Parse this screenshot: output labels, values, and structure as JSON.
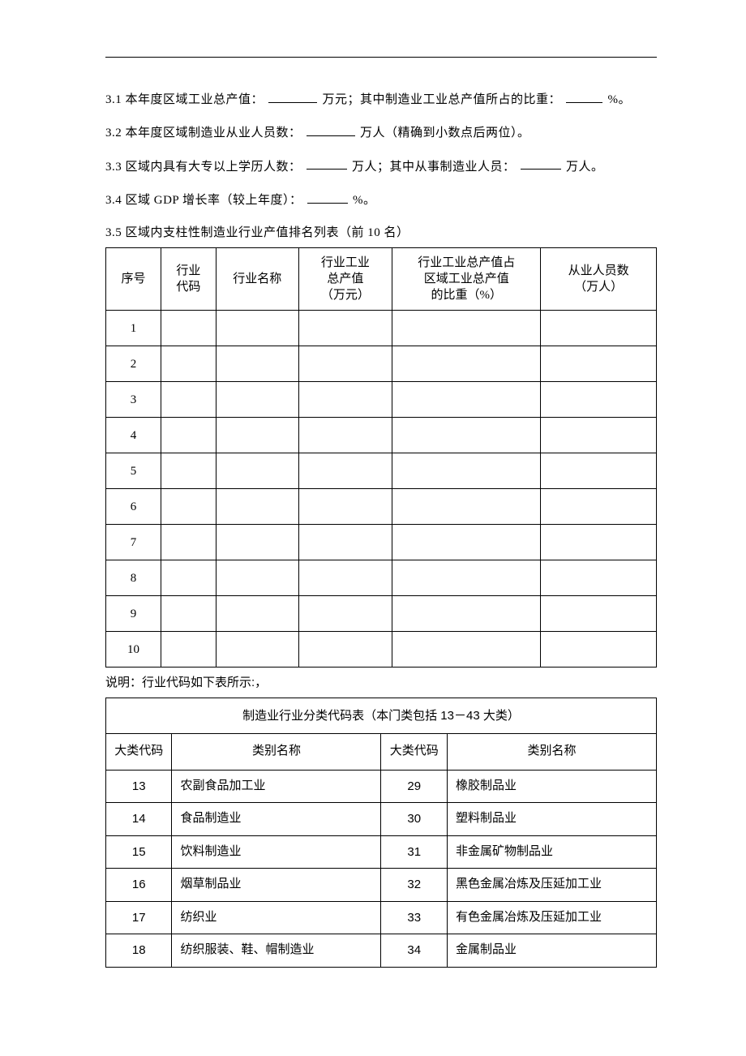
{
  "lines": {
    "l1a": "3.1 本年度区域工业总产值：",
    "l1b": "万元；其中制造业工业总产值所占的比重：",
    "l1c": "%。",
    "l2a": "3.2 本年度区域制造业从业人员数：",
    "l2b": "万人（精确到小数点后两位）。",
    "l3a": "3.3 区域内具有大专以上学历人数：",
    "l3b": " 万人；其中从事制造业人员：",
    "l3c": "万人。",
    "l4a": "3.4 区域 GDP 增长率（较上年度）：",
    "l4b": "%。",
    "l5": "3.5 区域内支柱性制造业行业产值排名列表（前 10 名）"
  },
  "rank_table": {
    "headers": [
      "序号",
      "行业\n代码",
      "行业名称",
      "行业工业\n总产值\n（万元）",
      "行业工业总产值占\n区域工业总产值\n的比重（%）",
      "从业人员数\n（万人）"
    ],
    "col_widths_pct": [
      10,
      10,
      15,
      17,
      27,
      21
    ],
    "rows": [
      "1",
      "2",
      "3",
      "4",
      "5",
      "6",
      "7",
      "8",
      "9",
      "10"
    ]
  },
  "note": "说明：行业代码如下表所示:，",
  "codes_table": {
    "title": "制造业行业分类代码表（本门类包括 13－43 大类）",
    "head": [
      "大类代码",
      "类别名称",
      "大类代码",
      "类别名称"
    ],
    "col_widths_pct": [
      12,
      38,
      12,
      38
    ],
    "rows": [
      {
        "c1": "13",
        "n1": "农副食品加工业",
        "c2": "29",
        "n2": "橡胶制品业"
      },
      {
        "c1": "14",
        "n1": "食品制造业",
        "c2": "30",
        "n2": "塑料制品业"
      },
      {
        "c1": "15",
        "n1": "饮料制造业",
        "c2": "31",
        "n2": "非金属矿物制品业"
      },
      {
        "c1": "16",
        "n1": "烟草制品业",
        "c2": "32",
        "n2": "黑色金属冶炼及压延加工业"
      },
      {
        "c1": "17",
        "n1": "纺织业",
        "c2": "33",
        "n2": "有色金属冶炼及压延加工业"
      },
      {
        "c1": "18",
        "n1": "纺织服装、鞋、帽制造业",
        "c2": "34",
        "n2": "金属制品业"
      }
    ]
  }
}
